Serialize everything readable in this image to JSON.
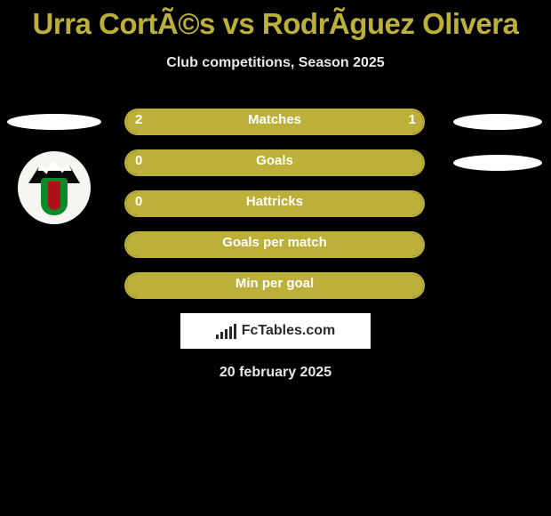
{
  "title": "Urra CortÃ©s vs RodrÃ­guez Olivera",
  "subtitle": "Club competitions, Season 2025",
  "date": "20 february 2025",
  "branding": "FcTables.com",
  "theme": {
    "accent": "#bcb03a",
    "background": "#000000",
    "text_light": "#ffffff",
    "text_muted": "#e8e8e8",
    "branding_bg": "#ffffff",
    "branding_fg": "#2a2a2a"
  },
  "stats": [
    {
      "label": "Matches",
      "left_val": "2",
      "right_val": "1",
      "left_pct": 66.7,
      "right_pct": 33.3,
      "show_left_val": true,
      "show_right_val": true
    },
    {
      "label": "Goals",
      "left_val": "0",
      "right_val": "",
      "left_pct": 100,
      "right_pct": 0,
      "show_left_val": true,
      "show_right_val": false
    },
    {
      "label": "Hattricks",
      "left_val": "0",
      "right_val": "",
      "left_pct": 100,
      "right_pct": 0,
      "show_left_val": true,
      "show_right_val": false
    },
    {
      "label": "Goals per match",
      "left_val": "",
      "right_val": "",
      "left_pct": 100,
      "right_pct": 0,
      "show_left_val": false,
      "show_right_val": false
    },
    {
      "label": "Min per goal",
      "left_val": "",
      "right_val": "",
      "left_pct": 100,
      "right_pct": 0,
      "show_left_val": false,
      "show_right_val": false
    }
  ],
  "player_badges": {
    "left": {
      "row": 0
    },
    "right": [
      {
        "row": 0
      },
      {
        "row": 1
      }
    ]
  },
  "branding_bars_heights": [
    5,
    8,
    11,
    14,
    17
  ]
}
